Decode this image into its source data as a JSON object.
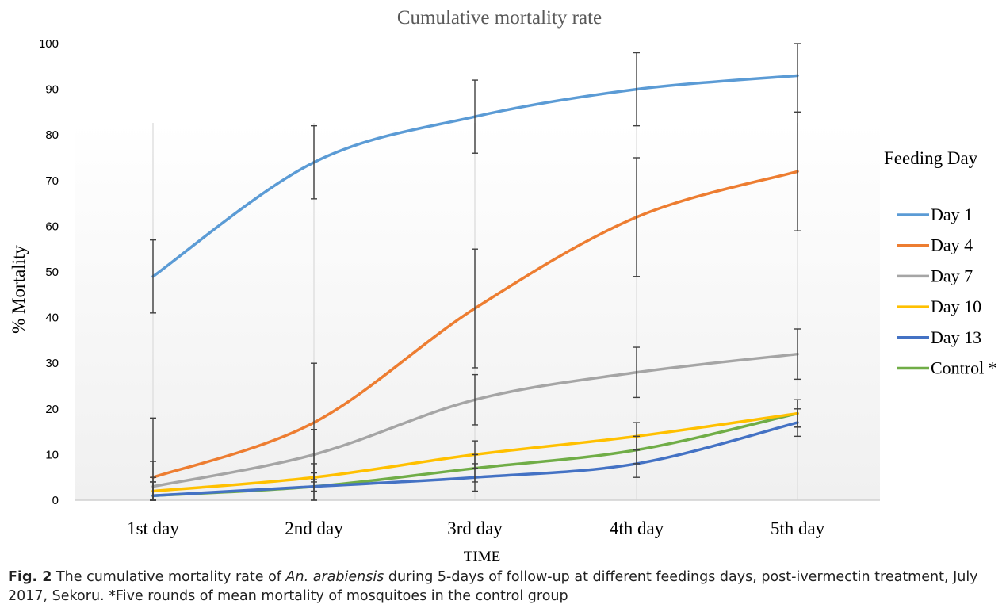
{
  "chart_data": {
    "type": "line",
    "title": "Cumulative mortality rate",
    "xlabel": "TIME",
    "ylabel": "% Mortality",
    "categories": [
      "1st day",
      "2nd day",
      "3rd day",
      "4th day",
      "5th day"
    ],
    "ylim": [
      0,
      100
    ],
    "yticks": [
      0,
      10,
      20,
      30,
      40,
      50,
      60,
      70,
      80,
      90,
      100
    ],
    "grid": false,
    "legend_title": "Feeding Day",
    "legend_position": "right",
    "series": [
      {
        "name": "Day 1",
        "color": "#5b9bd5",
        "values": [
          49,
          74,
          84,
          90,
          93
        ],
        "err": [
          8,
          8,
          8,
          8,
          8
        ]
      },
      {
        "name": "Day 4",
        "color": "#ed7d31",
        "values": [
          5,
          17,
          42,
          62,
          72
        ],
        "err": [
          13,
          13,
          13,
          13,
          13
        ]
      },
      {
        "name": "Day 7",
        "color": "#a5a5a5",
        "values": [
          3,
          10,
          22,
          28,
          32
        ],
        "err": [
          5.5,
          5.5,
          5.5,
          5.5,
          5.5
        ]
      },
      {
        "name": "Day 10",
        "color": "#ffc000",
        "values": [
          2,
          5,
          10,
          14,
          19
        ],
        "err": [
          3,
          3,
          3,
          3,
          3
        ]
      },
      {
        "name": "Day 13",
        "color": "#4472c4",
        "values": [
          1,
          3,
          5,
          8,
          17
        ],
        "err": [
          3,
          3,
          3,
          3,
          3
        ]
      },
      {
        "name": "Control *",
        "color": "#70ad47",
        "values": [
          1,
          3,
          7,
          11,
          19
        ],
        "err": [
          3,
          3,
          3,
          3,
          3
        ]
      }
    ]
  },
  "caption": {
    "label": "Fig. 2",
    "text_before": "The cumulative mortality rate of",
    "species": "An. arabiensis",
    "text_after": "during 5-days of follow-up at different feedings days, post-ivermectin treatment, July 2017, Sekoru. *Five rounds of mean mortality of mosquitoes in the control group"
  }
}
